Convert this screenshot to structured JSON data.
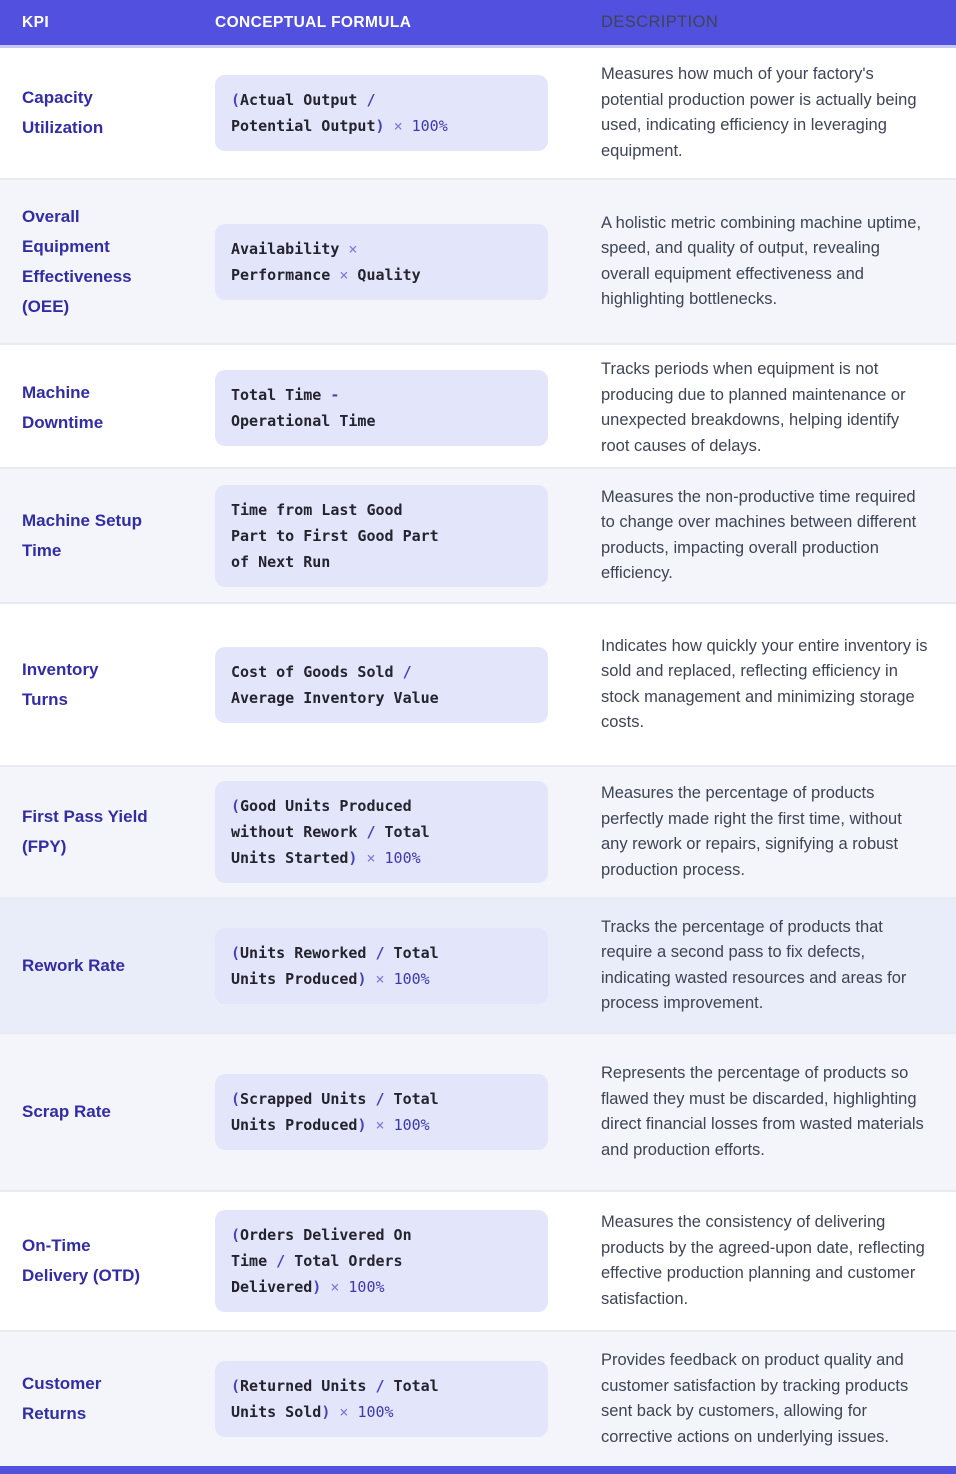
{
  "colors": {
    "accent": "#5150df",
    "header_text": "#ffffff",
    "header_divider": "#c6c8f3",
    "kpi_text": "#322da3",
    "formula_chip_bg": "#e3e5fb",
    "formula_text": "#24232e",
    "formula_operator": "#4742b9",
    "formula_multiply_sign": "#7d76da",
    "row_alt_bg": "#f4f5fa",
    "row_highlight_bg": "#e9ecf9",
    "description_text": "#3e4454"
  },
  "header": {
    "kpi": "KPI",
    "formula": "CONCEPTUAL FORMULA",
    "description": "DESCRIPTION"
  },
  "rows": [
    {
      "kpi": "Capacity\nUtilization",
      "formula": "(Actual Output /\nPotential Output) × 100%",
      "description": "Measures how much of your factory's potential production power is actually being used, indicating efficiency in leveraging equipment."
    },
    {
      "kpi": "Overall\nEquipment\nEffectiveness\n(OEE)",
      "formula": "Availability ×\nPerformance × Quality",
      "description": "A holistic metric combining machine uptime, speed, and quality of output, revealing overall equipment effectiveness and highlighting bottlenecks."
    },
    {
      "kpi": "Machine\nDowntime",
      "formula": "Total Time -\nOperational Time",
      "description": "Tracks periods when equipment is not producing due to planned maintenance or unexpected breakdowns, helping identify root causes of delays."
    },
    {
      "kpi": "Machine Setup\nTime",
      "formula": "Time from Last Good\nPart to First Good Part\nof Next Run",
      "description": "Measures the non-productive time required to change over machines between different products, impacting overall production efficiency."
    },
    {
      "kpi": "Inventory\nTurns",
      "formula": "Cost of Goods Sold /\nAverage Inventory Value",
      "description": "Indicates how quickly your entire inventory is sold and replaced, reflecting efficiency in stock management and minimizing storage costs."
    },
    {
      "kpi": "First Pass Yield\n(FPY)",
      "formula": "(Good Units Produced\nwithout Rework / Total\nUnits Started) × 100%",
      "description": "Measures the percentage of products perfectly made right the first time, without any rework or repairs, signifying a robust production process."
    },
    {
      "kpi": "Rework Rate",
      "formula": "(Units Reworked / Total\nUnits Produced) × 100%",
      "description": "Tracks the percentage of products that require a second pass to fix defects, indicating wasted resources and areas for process improvement."
    },
    {
      "kpi": "Scrap Rate",
      "formula": "(Scrapped Units / Total\nUnits Produced) × 100%",
      "description": "Represents the percentage of products so flawed they must be discarded, highlighting direct financial losses from wasted materials and production efforts."
    },
    {
      "kpi": "On-Time\nDelivery (OTD)",
      "formula": "(Orders Delivered On\nTime / Total Orders\nDelivered) × 100%",
      "description": "Measures the consistency of delivering products by the agreed-upon date, reflecting effective production planning and customer satisfaction."
    },
    {
      "kpi": "Customer\nReturns",
      "formula": "(Returned Units / Total\nUnits Sold) × 100%",
      "description": "Provides feedback on product quality and customer satisfaction by tracking products sent back by customers, allowing for corrective actions on underlying issues."
    }
  ]
}
